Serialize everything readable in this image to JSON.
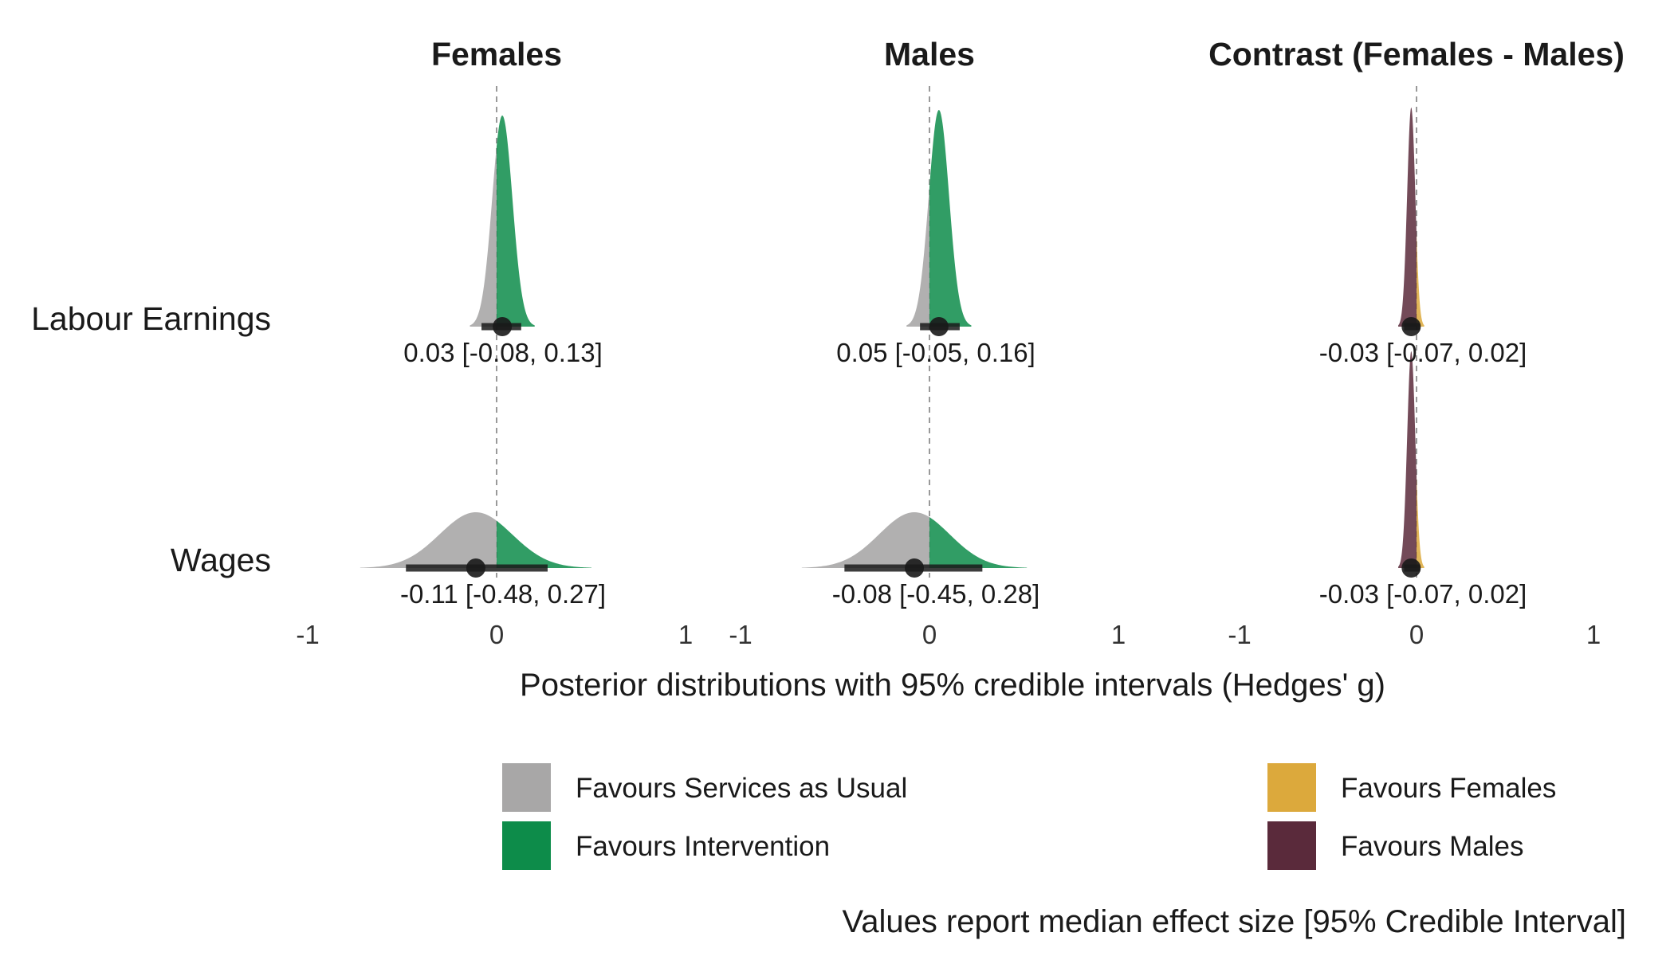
{
  "chart_data": {
    "type": "area",
    "title": "",
    "panels": [
      "Females",
      "Males",
      "Contrast (Females - Males)"
    ],
    "rows": [
      "Labour Earnings",
      "Wages"
    ],
    "xlim": [
      -1,
      1
    ],
    "x_ticks": [
      -1,
      0,
      1
    ],
    "x_tick_labels": [
      "-1",
      "0",
      "1"
    ],
    "xlabel": "Posterior distributions with 95% credible intervals (Hedges' g)",
    "reference_line": 0,
    "series": [
      {
        "panel": "Females",
        "row": "Labour Earnings",
        "median": 0.03,
        "lower": -0.08,
        "upper": 0.13,
        "label": "0.03 [-0.08, 0.13]"
      },
      {
        "panel": "Females",
        "row": "Wages",
        "median": -0.11,
        "lower": -0.48,
        "upper": 0.27,
        "label": "-0.11 [-0.48, 0.27]"
      },
      {
        "panel": "Males",
        "row": "Labour Earnings",
        "median": 0.05,
        "lower": -0.05,
        "upper": 0.16,
        "label": "0.05 [-0.05, 0.16]"
      },
      {
        "panel": "Males",
        "row": "Wages",
        "median": -0.08,
        "lower": -0.45,
        "upper": 0.28,
        "label": "-0.08 [-0.45, 0.28]"
      },
      {
        "panel": "Contrast (Females - Males)",
        "row": "Labour Earnings",
        "median": -0.03,
        "lower": -0.07,
        "upper": 0.02,
        "label": "-0.03 [-0.07, 0.02]"
      },
      {
        "panel": "Contrast (Females - Males)",
        "row": "Wages",
        "median": -0.03,
        "lower": -0.07,
        "upper": 0.02,
        "label": "-0.03 [-0.07, 0.02]"
      }
    ],
    "legend": [
      {
        "label": "Favours Services as Usual",
        "color": "#a3a2a2"
      },
      {
        "label": "Favours Intervention",
        "color": "#0d8c4a"
      },
      {
        "label": "Favours Females",
        "color": "#dca93c"
      },
      {
        "label": "Favours Males",
        "color": "#5a2a3b"
      }
    ],
    "legend_position": "bottom",
    "caption": "Values report median effect size [95% Credible Interval]",
    "colors": {
      "negative_main": "#a3a2a2",
      "positive_main": "#0d8c4a",
      "negative_contrast": "#5a2a3b",
      "positive_contrast": "#dca93c",
      "interval": "#1a1a1a",
      "reference_line": "#999999"
    },
    "grid": false
  }
}
